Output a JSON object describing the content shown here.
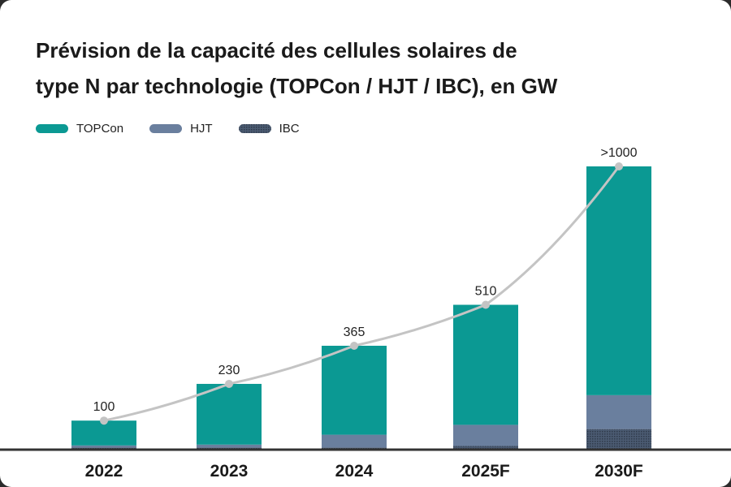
{
  "title_line1": "Prévision de la capacité des cellules solaires de",
  "title_line2": "type N par technologie (TOPCon / HJT / IBC), en GW",
  "colors": {
    "topcon": "#0b9993",
    "hjt": "#6a7f9e",
    "ibc": "#4b5b72",
    "line": "#c4c4c4",
    "axis": "#333333"
  },
  "chart_data": {
    "type": "bar",
    "stacked": true,
    "title": "Prévision de la capacité des cellules solaires de type N par technologie (TOPCon / HJT / IBC), en GW",
    "categories": [
      "2022",
      "2023",
      "2024",
      "2025F",
      "2030F"
    ],
    "series": [
      {
        "name": "TOPCon",
        "values": [
          88,
          215,
          315,
          425,
          810
        ]
      },
      {
        "name": "HJT",
        "values": [
          7,
          10,
          45,
          75,
          120
        ]
      },
      {
        "name": "IBC",
        "values": [
          5,
          5,
          5,
          10,
          70
        ]
      }
    ],
    "totals": [
      100,
      230,
      365,
      510,
      1000
    ],
    "total_labels": [
      "100",
      "230",
      "365",
      "510",
      ">1000"
    ],
    "ylim": [
      0,
      1000
    ],
    "legend_position": "top-left",
    "grid": false,
    "xlabel": "",
    "ylabel": ""
  }
}
